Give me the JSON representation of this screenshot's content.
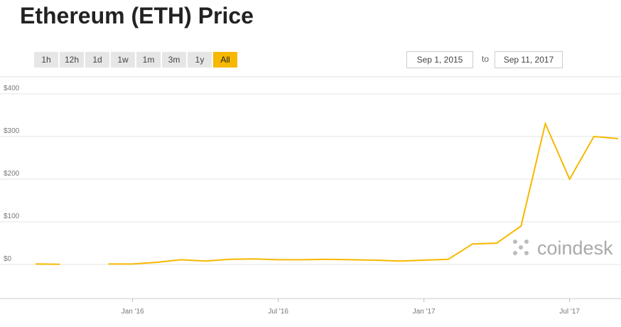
{
  "title": "Ethereum (ETH) Price",
  "ranges": [
    "1h",
    "12h",
    "1d",
    "1w",
    "1m",
    "3m",
    "1y",
    "All"
  ],
  "selected_range": "All",
  "date_from": "Sep 1, 2015",
  "date_to_label": "to",
  "date_to": "Sep 11, 2017",
  "watermark": "coindesk",
  "chart_data": {
    "type": "line",
    "x": [
      "2015-09",
      "2015-10",
      "2015-11",
      "2015-12",
      "2016-01",
      "2016-02",
      "2016-03",
      "2016-04",
      "2016-05",
      "2016-06",
      "2016-07",
      "2016-08",
      "2016-09",
      "2016-10",
      "2016-11",
      "2016-12",
      "2017-01",
      "2017-02",
      "2017-03",
      "2017-04",
      "2017-05",
      "2017-06",
      "2017-07",
      "2017-08",
      "2017-09"
    ],
    "series": [
      {
        "color": "#f7b800",
        "values": [
          1,
          0.5,
          null,
          1,
          1,
          5,
          11,
          8,
          12,
          13,
          11,
          11,
          12,
          11,
          10,
          8,
          10,
          12,
          48,
          50,
          90,
          330,
          200,
          300,
          295
        ]
      }
    ],
    "xlim": [
      "2015-09",
      "2017-09"
    ],
    "xticks": [
      {
        "value": "2016-01",
        "label": "Jan '16"
      },
      {
        "value": "2016-07",
        "label": "Jul '16"
      },
      {
        "value": "2017-01",
        "label": "Jan '17"
      },
      {
        "value": "2017-07",
        "label": "Jul '17"
      }
    ],
    "ylim": [
      -80,
      440
    ],
    "yticks": [
      {
        "value": 0,
        "label": "$0"
      },
      {
        "value": 100,
        "label": "$100"
      },
      {
        "value": 200,
        "label": "$200"
      },
      {
        "value": 300,
        "label": "$300"
      },
      {
        "value": 400,
        "label": "$400"
      }
    ],
    "grid": true
  }
}
